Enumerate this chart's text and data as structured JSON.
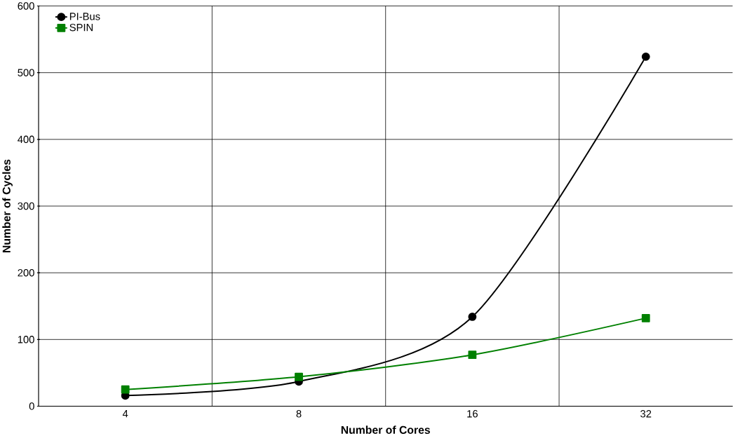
{
  "chart_data": {
    "type": "line",
    "xlabel": "Number of Cores",
    "ylabel": "Number of Cycles",
    "categories": [
      "4",
      "8",
      "16",
      "32"
    ],
    "series": [
      {
        "name": "PI-Bus",
        "color": "#000000",
        "marker": "circle",
        "values": [
          16,
          37,
          134,
          524
        ]
      },
      {
        "name": "SPIN",
        "color": "#008000",
        "marker": "square",
        "values": [
          25,
          44,
          77,
          132
        ]
      }
    ],
    "ylim": [
      0,
      600
    ],
    "yticks": [
      0,
      100,
      200,
      300,
      400,
      500,
      600
    ],
    "grid": true,
    "legend": "top left"
  }
}
